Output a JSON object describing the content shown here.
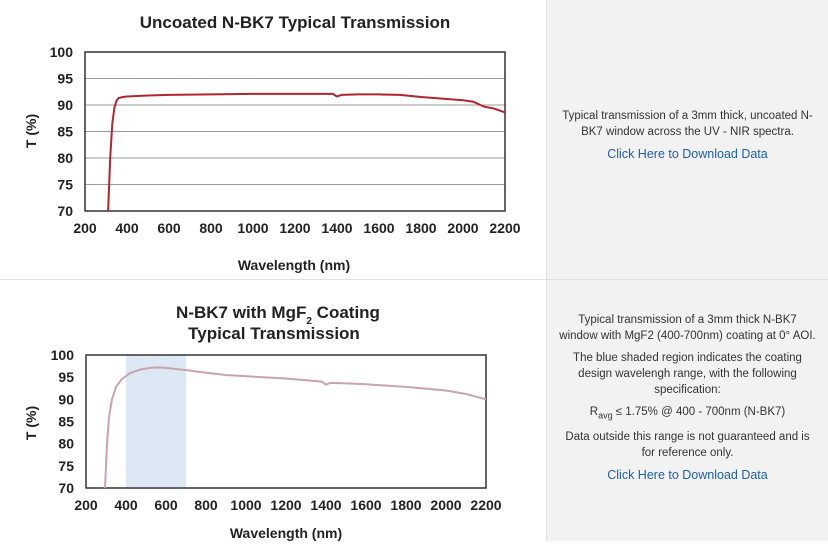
{
  "chart_data": [
    {
      "type": "line",
      "title": "Uncoated N-BK7 Typical Transmission",
      "xlabel": "Wavelength (nm)",
      "ylabel": "T (%)",
      "xlim": [
        200,
        2200
      ],
      "ylim": [
        70,
        100
      ],
      "xticks": [
        200,
        400,
        600,
        800,
        1000,
        1200,
        1400,
        1600,
        1800,
        2000,
        2200
      ],
      "yticks": [
        70,
        75,
        80,
        85,
        90,
        95,
        100
      ],
      "grid": true,
      "line_color": "#b0262f",
      "series": [
        {
          "x": [
            310,
            320,
            330,
            340,
            350,
            360,
            380,
            400,
            450,
            500,
            600,
            800,
            1000,
            1200,
            1380,
            1400,
            1420,
            1500,
            1600,
            1700,
            1800,
            1900,
            2000,
            2050,
            2100,
            2150,
            2200
          ],
          "y": [
            70,
            80,
            86.5,
            89.5,
            90.8,
            91.3,
            91.5,
            91.6,
            91.7,
            91.8,
            91.9,
            92.0,
            92.1,
            92.1,
            92.1,
            91.6,
            91.9,
            92.0,
            92.0,
            91.9,
            91.5,
            91.2,
            90.9,
            90.6,
            89.7,
            89.3,
            88.6
          ]
        }
      ]
    },
    {
      "type": "line",
      "title": "N-BK7 with MgF2 Coating Typical Transmission",
      "xlabel": "Wavelength (nm)",
      "ylabel": "T (%)",
      "xlim": [
        200,
        2200
      ],
      "ylim": [
        70,
        100
      ],
      "xticks": [
        200,
        400,
        600,
        800,
        1000,
        1200,
        1400,
        1600,
        1800,
        2000,
        2200
      ],
      "yticks": [
        70,
        75,
        80,
        85,
        90,
        95,
        100
      ],
      "grid": false,
      "shaded_range": [
        400,
        700
      ],
      "shade_color": "#dce9f5",
      "line_color": "#c9a3ad",
      "series": [
        {
          "x": [
            295,
            305,
            315,
            330,
            350,
            380,
            420,
            470,
            520,
            560,
            600,
            700,
            800,
            900,
            1000,
            1200,
            1380,
            1400,
            1420,
            1500,
            1600,
            1800,
            2000,
            2100,
            2150,
            2200
          ],
          "y": [
            70,
            80,
            86,
            90,
            92.8,
            94.6,
            95.9,
            96.7,
            97.1,
            97.2,
            97.1,
            96.6,
            96.0,
            95.5,
            95.2,
            94.7,
            94.0,
            93.3,
            93.7,
            93.6,
            93.4,
            92.8,
            92.0,
            91.2,
            90.6,
            90.0
          ]
        }
      ]
    }
  ],
  "chart1_text": {
    "title": "Uncoated N-BK7 Typical Transmission",
    "xlabel": "Wavelength (nm)",
    "ylabel": "T (%)"
  },
  "chart2_text": {
    "title_line1": "N-BK7 with MgF",
    "title_sub": "2",
    "title_line1_end": " Coating",
    "title_line2": "Typical Transmission",
    "xlabel": "Wavelength (nm)",
    "ylabel": "T (%)"
  },
  "panel1": {
    "description": "Typical transmission of a 3mm thick, uncoated N-BK7 window across the UV - NIR spectra.",
    "link": "Click Here to Download Data"
  },
  "panel2": {
    "description": "Typical transmission of a 3mm thick N-BK7 window with MgF2 (400-700nm) coating at 0° AOI.",
    "shade_note": "The blue shaded region indicates the coating design wavelengh range, with the following specification:",
    "spec_symbol": "R",
    "spec_sub": "avg",
    "spec_text": " ≤ 1.75% @ 400 - 700nm (N-BK7)",
    "disclaimer": "Data outside this range is not guaranteed and is for reference only.",
    "link": "Click Here to Download Data"
  }
}
